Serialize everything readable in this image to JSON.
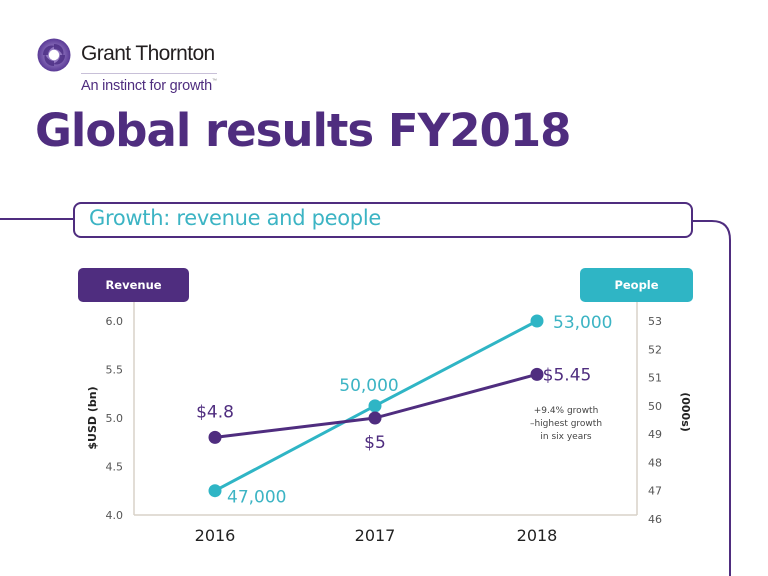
{
  "logo": {
    "name": "Grant Thornton",
    "tagline": "An instinct for growth",
    "tagline_mark": "™"
  },
  "title": "Global results FY2018",
  "section_title": "Growth: revenue and people",
  "colors": {
    "revenue": "#4f2d7f",
    "people": "#2fb5c5",
    "axis": "#d8d2c8",
    "brand_purple": "#4f2d7f"
  },
  "chart_data": {
    "type": "line",
    "title": "Growth: revenue and people",
    "categories": [
      "2016",
      "2017",
      "2018"
    ],
    "left_axis": {
      "pill_label": "Revenue",
      "label": "$USD (bn)",
      "range": [
        4.0,
        6.0
      ],
      "ticks": [
        "6.0",
        "5.5",
        "5.0",
        "4.5",
        "4.0"
      ],
      "tick_values": [
        6.0,
        5.5,
        5.0,
        4.5,
        4.0
      ]
    },
    "right_axis": {
      "pill_label": "People",
      "label": "(000s)",
      "range": [
        46,
        53
      ],
      "ticks": [
        "53",
        "52",
        "51",
        "50",
        "49",
        "48",
        "47",
        "46"
      ],
      "tick_values": [
        53,
        52,
        51,
        50,
        49,
        48,
        47,
        46
      ]
    },
    "series": [
      {
        "name": "Revenue",
        "axis": "left",
        "values": [
          4.8,
          5.0,
          5.45
        ],
        "data_labels": [
          "$4.8",
          "$5",
          "$5.45"
        ]
      },
      {
        "name": "People",
        "axis": "right",
        "values": [
          47,
          50,
          53
        ],
        "data_labels": [
          "47,000",
          "50,000",
          "53,000"
        ]
      }
    ],
    "annotation": [
      "+9.4% growth",
      "–highest growth",
      "in six years"
    ],
    "grid": false,
    "legend": "top-left and top-right pill labels"
  }
}
